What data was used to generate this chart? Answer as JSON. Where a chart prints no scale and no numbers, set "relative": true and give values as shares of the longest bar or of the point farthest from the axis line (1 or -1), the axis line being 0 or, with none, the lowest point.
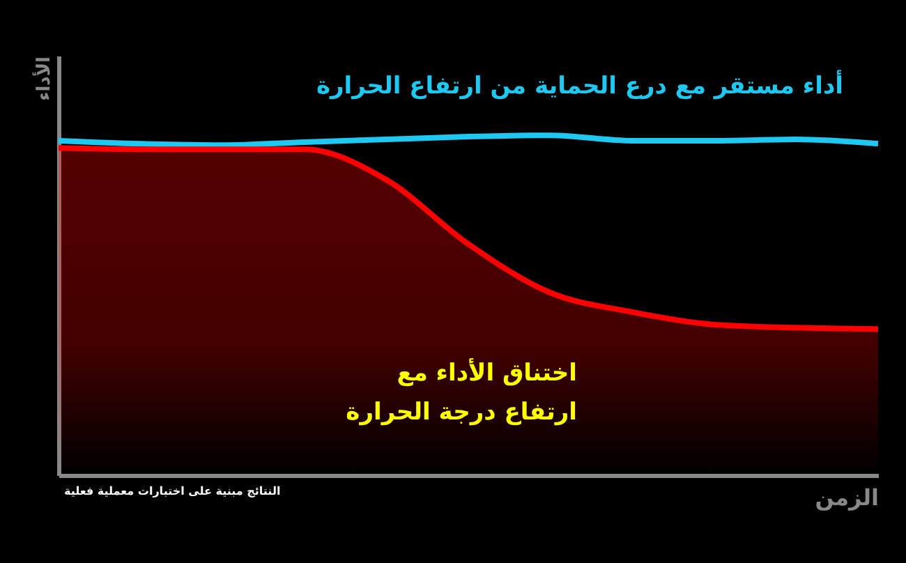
{
  "chart_data": {
    "type": "line",
    "relative": true,
    "xlabel": "الزمن",
    "ylabel": "الأداء",
    "categories": [
      null,
      null,
      null,
      null,
      null,
      null,
      null,
      null,
      null,
      null,
      null
    ],
    "series": [
      {
        "name": "أداء مستقر مع درع الحماية من ارتفاع الحرارة",
        "color": "#1ec8f0",
        "values": [
          0.984,
          0.975,
          0.971,
          0.98,
          0.988,
          0.996,
          1,
          0.984,
          0.984,
          0.988,
          0.975
        ]
      },
      {
        "type": "area",
        "color": "#ff0000",
        "values": [
          0.963,
          0.959,
          0.959,
          0.959,
          0.869,
          0.68,
          0.537,
          0.48,
          0.443,
          0.434,
          0.43
        ]
      }
    ],
    "annotations": [
      "اختناق الأداء مع\nارتفاع درجة الحرارة",
      "النتائج مبنية على اختبارات معملية فعلية"
    ],
    "grid": false
  }
}
